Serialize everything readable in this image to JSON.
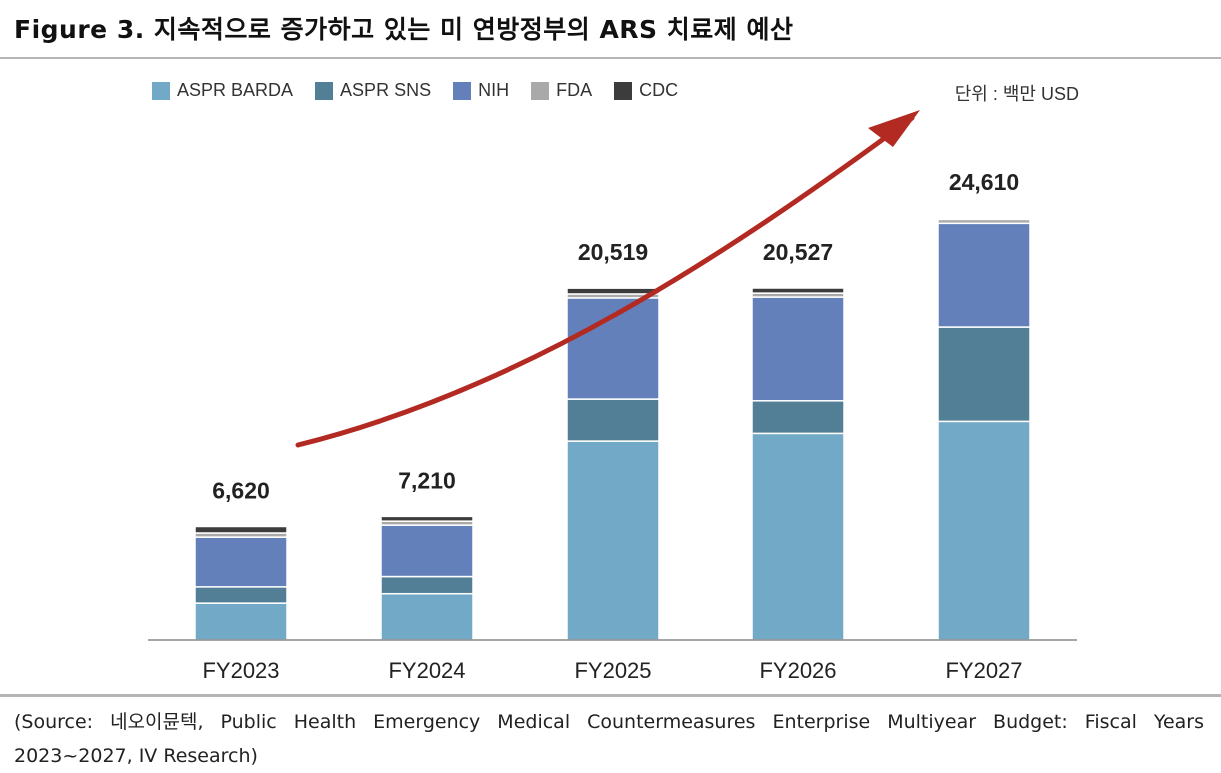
{
  "figure": {
    "title": "Figure 3. 지속적으로 증가하고 있는 미 연방정부의 ARS 치료제 예산",
    "unit_label": "단위 : 백만 USD",
    "source": "(Source: 네오이뮨텍, Public Health Emergency Medical Countermeasures Enterprise Multiyear Budget: Fiscal Years 2023~2027, IV Research)"
  },
  "chart_data": {
    "type": "bar",
    "stacked": true,
    "categories": [
      "FY2023",
      "FY2024",
      "FY2025",
      "FY2026",
      "FY2027"
    ],
    "totals": [
      6620,
      7210,
      20519,
      20527,
      24610
    ],
    "total_labels": [
      "6,620",
      "7,210",
      "20,519",
      "20,527",
      "24,610"
    ],
    "series": [
      {
        "name": "ASPR BARDA",
        "color": "#72a9c6",
        "values": [
          2150,
          2700,
          11600,
          12050,
          12750
        ]
      },
      {
        "name": "ASPR SNS",
        "color": "#527f96",
        "values": [
          950,
          1000,
          2450,
          1900,
          5500
        ]
      },
      {
        "name": "NIH",
        "color": "#6380ba",
        "values": [
          2900,
          3000,
          5900,
          6050,
          6050
        ]
      },
      {
        "name": "FDA",
        "color": "#a9a9a9",
        "values": [
          240,
          230,
          230,
          230,
          230
        ]
      },
      {
        "name": "CDC",
        "color": "#3c3c3c",
        "values": [
          380,
          280,
          339,
          297,
          80
        ]
      }
    ],
    "ylim": [
      0,
      26000
    ],
    "grid": false,
    "legend": "top-left",
    "annotation": "upward trend arrow"
  }
}
